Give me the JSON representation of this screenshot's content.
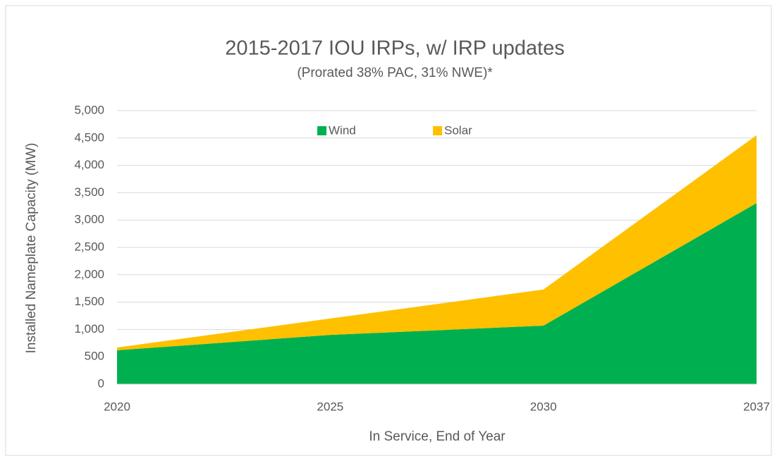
{
  "chart_data": {
    "type": "stacked_area",
    "title": "2015-2017 IOU IRPs, w/ IRP updates",
    "subtitle": "(Prorated 38% PAC, 31% NWE)*",
    "x_label": "In Service, End of Year",
    "y_label": "Installed Nameplate Capacity (MW)",
    "categories": [
      "2020",
      "2025",
      "2030",
      "2037"
    ],
    "series": [
      {
        "name": "Wind",
        "color": "#00b050",
        "values": [
          620,
          900,
          1070,
          3310
        ]
      },
      {
        "name": "Solar",
        "color": "#ffc000",
        "values": [
          50,
          300,
          660,
          1240
        ]
      }
    ],
    "ylim": [
      0,
      5000
    ],
    "yticks": [
      0,
      500,
      {
        "value": 1000,
        "label": "1,000"
      },
      {
        "value": 1500,
        "label": "1,500"
      },
      {
        "value": 2000,
        "label": "2,000"
      },
      {
        "value": 2500,
        "label": "2,500"
      },
      {
        "value": 3000,
        "label": "3,000"
      },
      {
        "value": 3500,
        "label": "3,500"
      },
      {
        "value": 4000,
        "label": "4,000"
      },
      {
        "value": 4500,
        "label": "4,500"
      },
      {
        "value": 5000,
        "label": "5,000"
      }
    ],
    "grid": true,
    "legend": "top"
  }
}
